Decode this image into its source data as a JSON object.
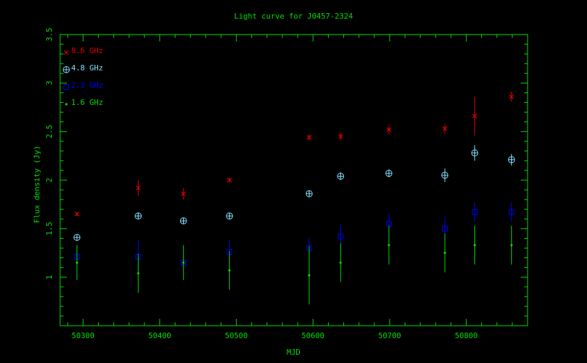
{
  "chart_data": {
    "type": "scatter",
    "title": "Light curve for J0457-2324",
    "xlabel": "MJD",
    "ylabel": "Flux density (Jy)",
    "xlim": [
      50270,
      50880
    ],
    "ylim": [
      0.5,
      3.5
    ],
    "xticks": [
      50300,
      50400,
      50500,
      50600,
      50700,
      50800
    ],
    "xtick_labels": [
      "50300",
      "50400",
      "50500",
      "50600",
      "50700",
      "50800"
    ],
    "yticks": [
      1,
      1.5,
      2,
      2.5,
      3,
      3.5
    ],
    "ytick_labels": [
      "1",
      "1.5",
      "2",
      "2.5",
      "3",
      "3.5"
    ],
    "legend_placement": "top-left",
    "colors": {
      "axes": "#00e000",
      "title": "#00e000"
    },
    "series": [
      {
        "name": "8.6 GHz",
        "marker": "x",
        "color": "#e00000",
        "x": [
          50292,
          50372,
          50431,
          50491,
          50595,
          50636,
          50699,
          50772,
          50811,
          50859
        ],
        "y": [
          1.65,
          1.92,
          1.86,
          2.0,
          2.44,
          2.45,
          2.52,
          2.53,
          2.66,
          2.86
        ],
        "yerr": [
          0.02,
          0.08,
          0.06,
          0.03,
          0.03,
          0.04,
          0.05,
          0.05,
          0.2,
          0.05
        ]
      },
      {
        "name": "4.8 GHz",
        "marker": "circle-plus",
        "color": "#80e0ff",
        "x": [
          50292,
          50372,
          50431,
          50491,
          50595,
          50636,
          50699,
          50772,
          50811,
          50859
        ],
        "y": [
          1.41,
          1.63,
          1.58,
          1.63,
          1.86,
          2.04,
          2.07,
          2.05,
          2.28,
          2.21
        ],
        "yerr": [
          0.02,
          0.03,
          0.03,
          0.03,
          0.03,
          0.04,
          0.04,
          0.07,
          0.08,
          0.06
        ]
      },
      {
        "name": "2.3 GHz",
        "marker": "square",
        "color": "#0000ff",
        "x": [
          50292,
          50372,
          50431,
          50491,
          50595,
          50636,
          50699,
          50772,
          50811,
          50859
        ],
        "y": [
          1.21,
          1.21,
          1.15,
          1.26,
          1.3,
          1.42,
          1.55,
          1.5,
          1.67,
          1.67
        ],
        "yerr": [
          0.08,
          0.18,
          0.05,
          0.12,
          0.1,
          0.12,
          0.1,
          0.12,
          0.1,
          0.1
        ]
      },
      {
        "name": "1.6 GHz",
        "marker": "dot",
        "color": "#00e000",
        "x": [
          50292,
          50372,
          50431,
          50491,
          50595,
          50636,
          50699,
          50772,
          50811,
          50859
        ],
        "y": [
          1.15,
          1.04,
          1.15,
          1.07,
          1.02,
          1.15,
          1.33,
          1.25,
          1.33,
          1.33
        ],
        "yerr": [
          0.18,
          0.2,
          0.18,
          0.2,
          0.3,
          0.2,
          0.2,
          0.2,
          0.2,
          0.2
        ]
      }
    ]
  }
}
